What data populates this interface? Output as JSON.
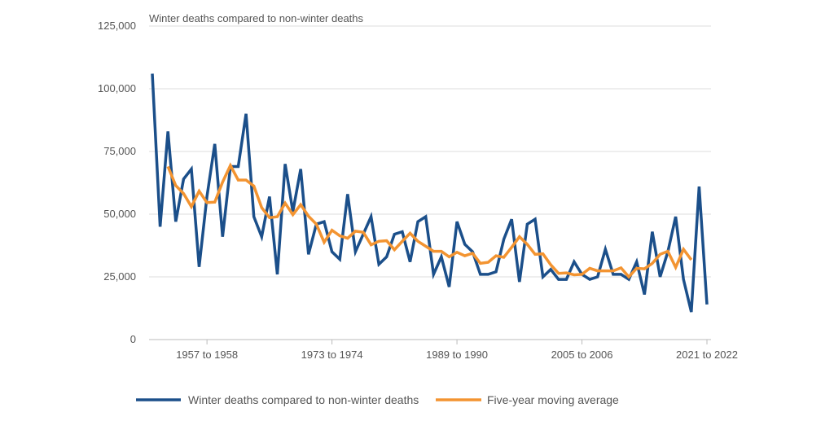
{
  "chart_data": {
    "type": "line",
    "title": "Winter deaths compared to non-winter deaths",
    "xlabel": "",
    "ylabel": "",
    "ylim": [
      0,
      125000
    ],
    "yticks": [
      0,
      25000,
      50000,
      75000,
      100000,
      125000
    ],
    "ytick_labels": [
      "0",
      "25,000",
      "50,000",
      "75,000",
      "100,000",
      "125,000"
    ],
    "xtick_labels": [
      "1957 to 1958",
      "1973 to 1974",
      "1989 to 1990",
      "2005 to 2006",
      "2021 to 2022"
    ],
    "grid": true,
    "legend_position": "bottom",
    "categories": [
      "1950 to 1951",
      "1951 to 1952",
      "1952 to 1953",
      "1953 to 1954",
      "1954 to 1955",
      "1955 to 1956",
      "1956 to 1957",
      "1957 to 1958",
      "1958 to 1959",
      "1959 to 1960",
      "1960 to 1961",
      "1961 to 1962",
      "1962 to 1963",
      "1963 to 1964",
      "1964 to 1965",
      "1965 to 1966",
      "1966 to 1967",
      "1967 to 1968",
      "1968 to 1969",
      "1969 to 1970",
      "1970 to 1971",
      "1971 to 1972",
      "1972 to 1973",
      "1973 to 1974",
      "1974 to 1975",
      "1975 to 1976",
      "1976 to 1977",
      "1977 to 1978",
      "1978 to 1979",
      "1979 to 1980",
      "1980 to 1981",
      "1981 to 1982",
      "1982 to 1983",
      "1983 to 1984",
      "1984 to 1985",
      "1985 to 1986",
      "1986 to 1987",
      "1987 to 1988",
      "1988 to 1989",
      "1989 to 1990",
      "1990 to 1991",
      "1991 to 1992",
      "1992 to 1993",
      "1993 to 1994",
      "1994 to 1995",
      "1995 to 1996",
      "1996 to 1997",
      "1997 to 1998",
      "1998 to 1999",
      "1999 to 2000",
      "2000 to 2001",
      "2001 to 2002",
      "2002 to 2003",
      "2003 to 2004",
      "2004 to 2005",
      "2005 to 2006",
      "2006 to 2007",
      "2007 to 2008",
      "2008 to 2009",
      "2009 to 2010",
      "2010 to 2011",
      "2011 to 2012",
      "2012 to 2013",
      "2013 to 2014",
      "2014 to 2015",
      "2015 to 2016",
      "2016 to 2017",
      "2017 to 2018",
      "2018 to 2019",
      "2019 to 2020",
      "2020 to 2021",
      "2021 to 2022"
    ],
    "series": [
      {
        "name": "Winter deaths compared to non-winter deaths",
        "color": "#1b4f8a",
        "values": [
          106000,
          45000,
          83000,
          47000,
          64000,
          68000,
          29000,
          57000,
          78000,
          41000,
          69000,
          69000,
          90000,
          49000,
          41000,
          57000,
          26000,
          70000,
          51000,
          68000,
          34000,
          46000,
          47000,
          35000,
          32000,
          58000,
          35000,
          42000,
          49000,
          30000,
          33000,
          42000,
          43000,
          31000,
          47000,
          49000,
          26000,
          33000,
          21000,
          47000,
          38000,
          35000,
          26000,
          26000,
          27000,
          40000,
          48000,
          23000,
          46000,
          48000,
          25000,
          28000,
          24000,
          24000,
          31000,
          26000,
          24000,
          25000,
          36000,
          26000,
          26000,
          24000,
          31000,
          18000,
          43000,
          25000,
          35000,
          49000,
          24000,
          11000,
          61000,
          14000
        ]
      },
      {
        "name": "Five-year moving average",
        "color": "#f39431",
        "values": [
          null,
          null,
          69000,
          61400,
          58200,
          53000,
          59200,
          54600,
          54800,
          62800,
          69400,
          63600,
          63600,
          61200,
          52600,
          48600,
          49000,
          54400,
          49800,
          53800,
          49200,
          46000,
          38800,
          43600,
          41400,
          40400,
          43200,
          42800,
          37800,
          39200,
          39400,
          35800,
          39200,
          42400,
          39200,
          37200,
          35200,
          35200,
          33000,
          34800,
          33400,
          34400,
          30400,
          30800,
          33400,
          32800,
          36800,
          41000,
          38000,
          34000,
          34200,
          29800,
          26400,
          26600,
          25800,
          26000,
          28400,
          27400,
          27400,
          27400,
          28600,
          25000,
          28400,
          28200,
          30400,
          34000,
          35200,
          28800,
          36000,
          31800,
          null,
          null
        ]
      }
    ]
  }
}
